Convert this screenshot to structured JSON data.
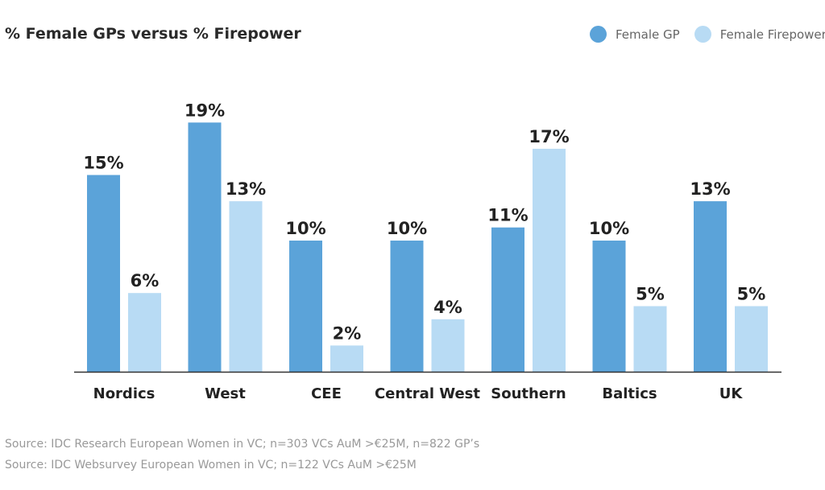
{
  "chart_data": {
    "type": "bar",
    "title": "% Female GPs versus % Firepower",
    "xlabel": "",
    "ylabel": "",
    "ylim": [
      0,
      20
    ],
    "grid": false,
    "legend_position": "top-right",
    "categories": [
      "Nordics",
      "West",
      "CEE",
      "Central West",
      "Southern",
      "Baltics",
      "UK"
    ],
    "series": [
      {
        "name": "Female GP",
        "color": "#5BA3D9",
        "values": [
          15,
          19,
          10,
          10,
          11,
          10,
          13
        ],
        "labels": [
          "15%",
          "19%",
          "10%",
          "10%",
          "11%",
          "10%",
          "13%"
        ]
      },
      {
        "name": "Female Firepower",
        "color": "#B8DBF4",
        "values": [
          6,
          13,
          2,
          4,
          17,
          5,
          5
        ],
        "labels": [
          "6%",
          "13%",
          "2%",
          "4%",
          "17%",
          "5%",
          "5%"
        ]
      }
    ]
  },
  "sources": [
    "Source: IDC Research European Women in VC; n=303 VCs AuM >€25M, n=822 GP’s",
    "Source: IDC Websurvey European Women in VC; n=122 VCs AuM >€25M"
  ]
}
